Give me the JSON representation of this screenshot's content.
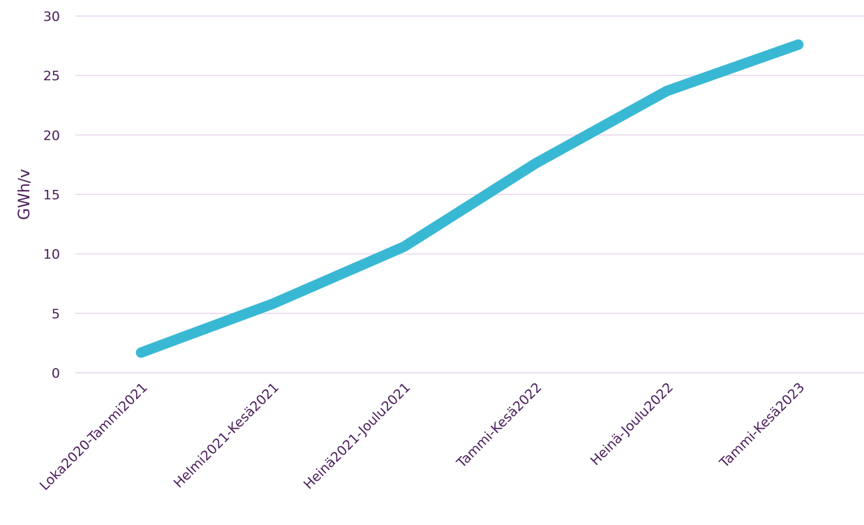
{
  "chart_data": {
    "type": "line",
    "title": "",
    "xlabel": "",
    "ylabel": "GWh/v",
    "categories": [
      "Loka2020-Tammi2021",
      "Helmi2021-Kesä2021",
      "Heinä2021-Joulu2021",
      "Tammi-Kesä2022",
      "Heinä-Joulu2022",
      "Tammi-Kesä2023"
    ],
    "series": [
      {
        "values": [
          1.7,
          5.8,
          10.6,
          17.6,
          23.7,
          27.6
        ]
      }
    ],
    "y_ticks": [
      "0",
      "5",
      "10",
      "15",
      "20",
      "25",
      "30"
    ],
    "ylim": [
      0,
      30
    ],
    "grid": true,
    "legend": "none"
  },
  "colors": {
    "line": "#39b8d4",
    "text": "#4a1c5a",
    "grid": "#e6d6ec"
  }
}
